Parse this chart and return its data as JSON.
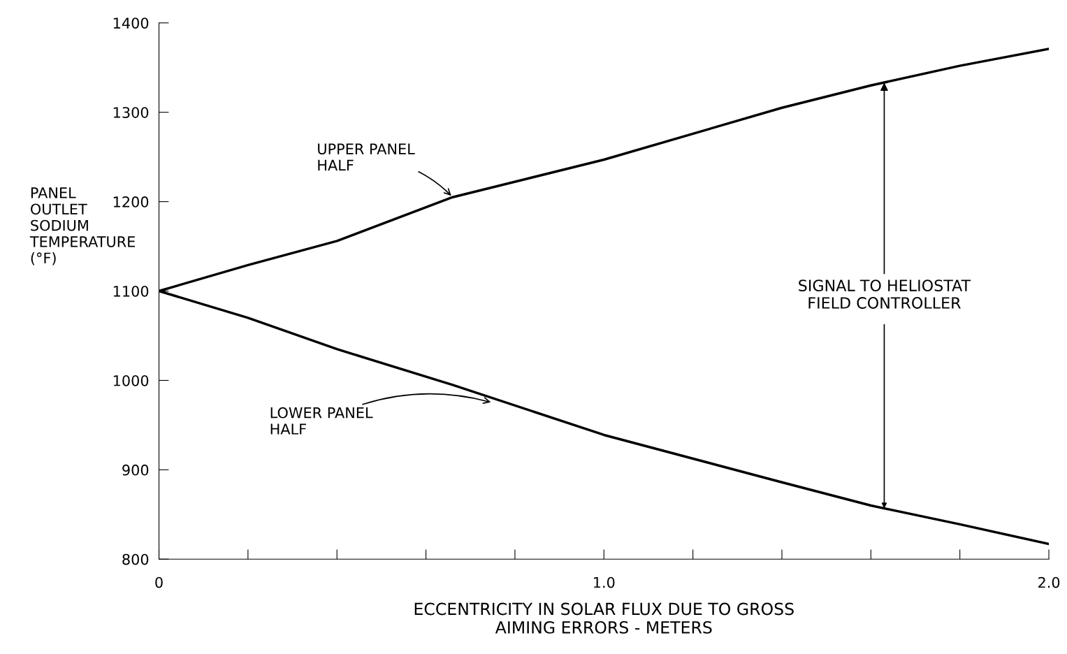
{
  "chart_data": {
    "type": "line",
    "xlabel": "ECCENTRICITY IN SOLAR FLUX DUE TO GROSS\nAIMING ERRORS - METERS",
    "ylabel": "PANEL\nOUTLET\nSODIUM\nTEMPERATURE\n(°F)",
    "x": [
      0,
      0.2,
      0.4,
      0.66,
      1.0,
      1.4,
      1.6,
      1.8,
      2.0
    ],
    "series": [
      {
        "color": "#000000",
        "values": [
          1100,
          1129,
          1156,
          1205,
          1247,
          1305,
          1330,
          1352,
          1371
        ]
      },
      {
        "color": "#000000",
        "values": [
          1100,
          1070,
          1035,
          995,
          939,
          886,
          860,
          839,
          817
        ]
      }
    ],
    "xlim": [
      0,
      2.0
    ],
    "xticks": [
      {
        "value": 0,
        "label": "0"
      },
      {
        "value": 0.2,
        "label": null
      },
      {
        "value": 0.4,
        "label": null
      },
      {
        "value": 0.6,
        "label": null
      },
      {
        "value": 0.8,
        "label": null
      },
      {
        "value": 1.0,
        "label": "1.0"
      },
      {
        "value": 1.2,
        "label": null
      },
      {
        "value": 1.4,
        "label": null
      },
      {
        "value": 1.6,
        "label": null
      },
      {
        "value": 1.8,
        "label": null
      },
      {
        "value": 2.0,
        "label": "2.0"
      }
    ],
    "ylim": [
      800,
      1400
    ],
    "yticks": [
      800,
      900,
      1000,
      1100,
      1200,
      1300,
      1400
    ],
    "grid": false,
    "line_style": "solid",
    "marker": "none",
    "annotations": [
      {
        "text": "UPPER PANEL\nHALF",
        "x": 0.66,
        "y": 1205
      },
      {
        "text": "LOWER PANEL\nHALF",
        "x": 0.75,
        "y": 975
      },
      {
        "text": "SIGNAL TO HELIOSTAT\nFIELD CONTROLLER",
        "x": 1.63,
        "y": 1333
      }
    ]
  }
}
